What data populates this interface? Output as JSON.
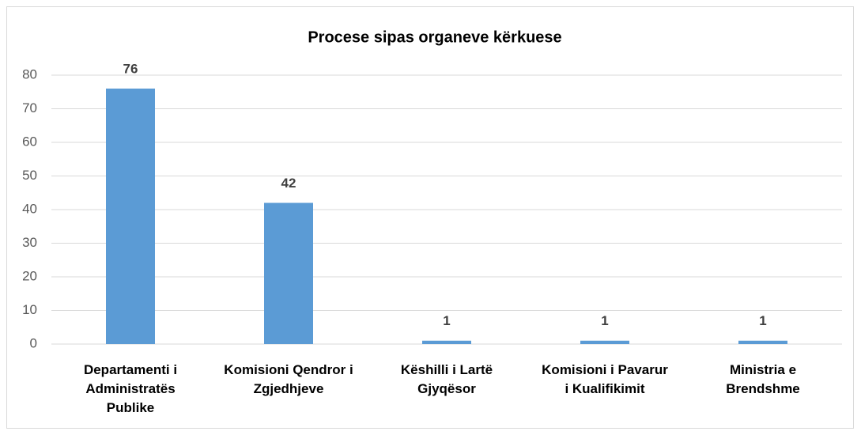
{
  "chart_data": {
    "type": "bar",
    "title": "Procese sipas organeve kërkuese",
    "categories": [
      "Departamenti i Administratës Publike",
      "Komisioni Qendror i Zgjedhjeve",
      "Këshilli i Lartë Gjyqësor",
      "Komisioni i Pavarur i Kualifikimit",
      "Ministria e Brendshme"
    ],
    "values": [
      76,
      42,
      1,
      1,
      1
    ],
    "color": "#5b9bd5",
    "ylim": [
      0,
      80
    ],
    "yticks": [
      0,
      10,
      20,
      30,
      40,
      50,
      60,
      70,
      80
    ],
    "grid": true
  }
}
